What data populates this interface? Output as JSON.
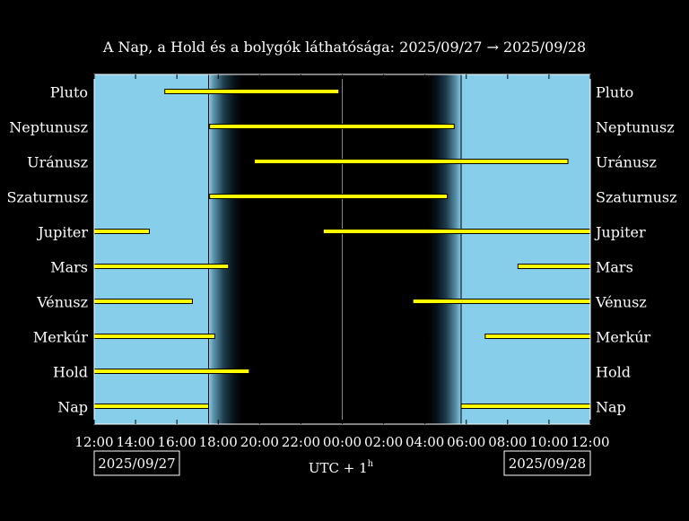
{
  "title": "A Nap, a Hold és a bolygók láthatósága: 2025/09/27 → 2025/09/28",
  "xlabel": "UTC + 1",
  "xlabel_superscript": "h",
  "start_date_box": "2025/09/27",
  "end_date_box": "2025/09/28",
  "colors": {
    "background": "#000000",
    "day_sky": "#87ceeb",
    "bar_fill": "#ffff00",
    "bar_edge": "#000000",
    "axes_edge": "#ffffff"
  },
  "chart_data": {
    "type": "bar",
    "orientation": "horizontal",
    "x_tick_labels": [
      "12:00",
      "14:00",
      "16:00",
      "18:00",
      "20:00",
      "22:00",
      "00:00",
      "02:00",
      "04:00",
      "06:00",
      "08:00",
      "10:00",
      "12:00"
    ],
    "xlim": [
      "2025-09-27 12:00",
      "2025-09-28 12:00"
    ],
    "sunset": "2025-09-27 17:32",
    "dusk_end": "2025-09-27 19:10",
    "dawn_start": "2025-09-28 04:10",
    "sunrise": "2025-09-28 05:45",
    "midnight": "2025-09-28 00:00",
    "categories": [
      "Pluto",
      "Neptunusz",
      "Uránusz",
      "Szaturnusz",
      "Jupiter",
      "Mars",
      "Vénusz",
      "Merkúr",
      "Hold",
      "Nap"
    ],
    "intervals": [
      [
        [
          "2025-09-27 15:25",
          "2025-09-27 23:50"
        ]
      ],
      [
        [
          "2025-09-27 17:35",
          "2025-09-28 05:25"
        ]
      ],
      [
        [
          "2025-09-27 19:45",
          "2025-09-28 10:55"
        ]
      ],
      [
        [
          "2025-09-27 17:35",
          "2025-09-28 05:05"
        ]
      ],
      [
        [
          "2025-09-27 12:00",
          "2025-09-27 14:40"
        ],
        [
          "2025-09-27 23:05",
          "2025-09-28 12:00"
        ]
      ],
      [
        [
          "2025-09-27 12:00",
          "2025-09-27 18:30"
        ],
        [
          "2025-09-28 08:30",
          "2025-09-28 12:00"
        ]
      ],
      [
        [
          "2025-09-27 12:00",
          "2025-09-27 16:45"
        ],
        [
          "2025-09-28 03:25",
          "2025-09-28 12:00"
        ]
      ],
      [
        [
          "2025-09-27 12:00",
          "2025-09-27 17:50"
        ],
        [
          "2025-09-28 06:55",
          "2025-09-28 12:00"
        ]
      ],
      [
        [
          "2025-09-27 12:00",
          "2025-09-27 19:30"
        ]
      ],
      [
        [
          "2025-09-27 12:00",
          "2025-09-27 17:32"
        ],
        [
          "2025-09-28 05:45",
          "2025-09-28 12:00"
        ]
      ]
    ]
  }
}
